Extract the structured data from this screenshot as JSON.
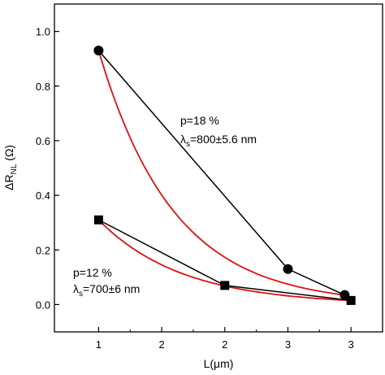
{
  "chart_data": {
    "type": "scatter",
    "xlabel": "L(μm)",
    "ylabel": "ΔR NL (Ω)",
    "ylabel_parts": {
      "base": "ΔR",
      "sub": "NL",
      "unit": "(Ω)"
    },
    "xlim": [
      0.65,
      3.25
    ],
    "ylim": [
      -0.1,
      1.1
    ],
    "x_ticks": [
      1,
      1.5,
      2,
      2.5,
      3
    ],
    "x_tick_labels": [
      "1",
      "2",
      "2",
      "3",
      "3"
    ],
    "y_ticks": [
      0.0,
      0.2,
      0.4,
      0.6,
      0.8,
      1.0
    ],
    "y_tick_labels": [
      "0.0",
      "0.2",
      "0.4",
      "0.6",
      "0.8",
      "1.0"
    ],
    "grid": false,
    "series": [
      {
        "marker": "circle",
        "points": [
          [
            1.0,
            0.93
          ],
          [
            2.5,
            0.13
          ],
          [
            2.95,
            0.035
          ]
        ],
        "line_color": "#000000",
        "fit_color": "#e01010"
      },
      {
        "marker": "square",
        "points": [
          [
            1.0,
            0.31
          ],
          [
            2.0,
            0.07
          ],
          [
            3.0,
            0.015
          ]
        ],
        "line_color": "#000000",
        "fit_color": "#e01010"
      }
    ],
    "annotations": [
      {
        "line1": "p=18 %",
        "line2_symbol": "λ",
        "line2_sub": "s",
        "line2_rest": "=800±5.6 nm"
      },
      {
        "line1": "p=12 %",
        "line2_symbol": "λ",
        "line2_sub": "s",
        "line2_rest": "=700±6 nm"
      }
    ]
  }
}
